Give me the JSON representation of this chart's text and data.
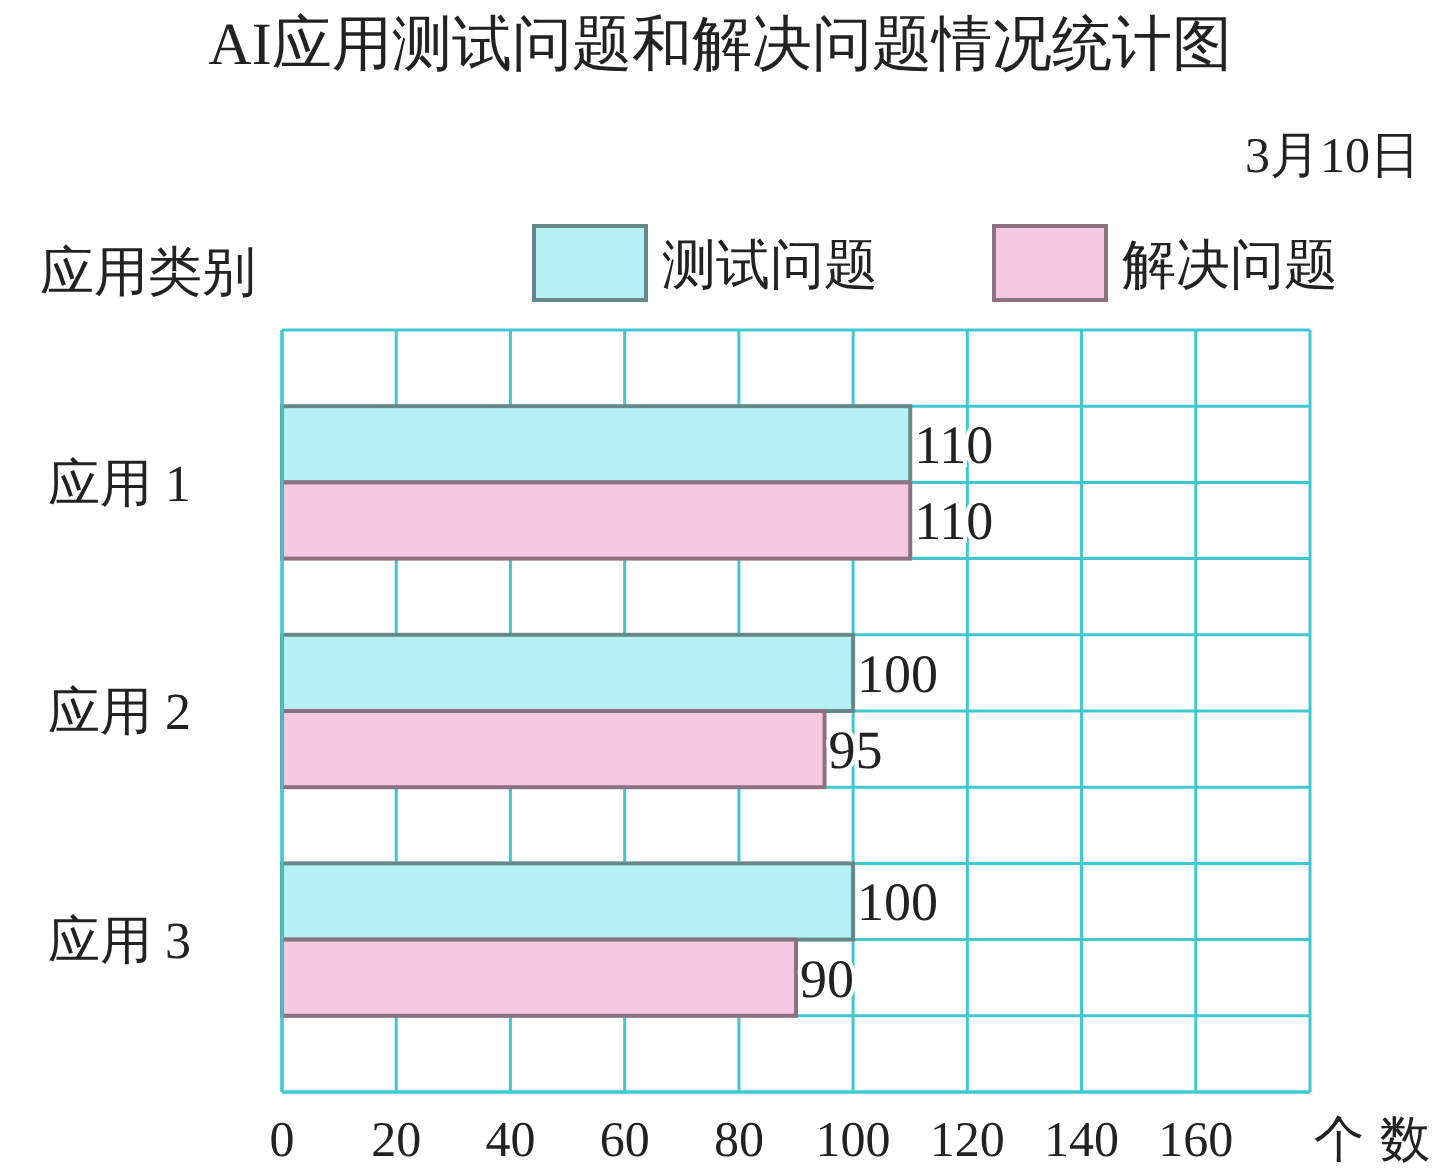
{
  "chart_data": {
    "type": "bar",
    "orientation": "horizontal",
    "title": "AI应用测试问题和解决问题情况统计图",
    "subtitle": "3月10日",
    "ylabel": "应用类别",
    "xlabel": "个数",
    "categories": [
      "应用 1",
      "应用 2",
      "应用 3"
    ],
    "series": [
      {
        "name": "测试问题",
        "color": "#b5f0f2",
        "values": [
          110,
          100,
          100
        ]
      },
      {
        "name": "解决问题",
        "color": "#f7c8e2",
        "values": [
          110,
          95,
          90
        ]
      }
    ],
    "xlim": [
      0,
      180
    ],
    "xticks": [
      0,
      20,
      40,
      60,
      80,
      100,
      120,
      140,
      160,
      {
        "value": 180,
        "label": null
      }
    ],
    "grid": true,
    "legend": "top right",
    "data_labels": true
  }
}
